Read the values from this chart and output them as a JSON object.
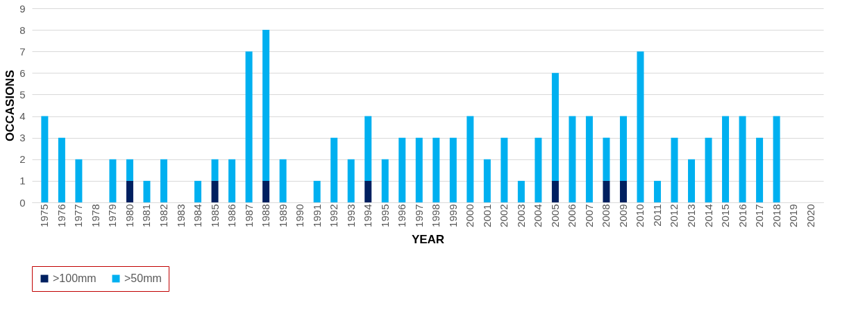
{
  "chart_data": {
    "type": "bar",
    "stacked": true,
    "xlabel": "YEAR",
    "ylabel": "OCCASIONS",
    "categories": [
      "1975",
      "1976",
      "1977",
      "1978",
      "1979",
      "1980",
      "1981",
      "1982",
      "1983",
      "1984",
      "1985",
      "1986",
      "1987",
      "1988",
      "1989",
      "1990",
      "1991",
      "1992",
      "1993",
      "1994",
      "1995",
      "1996",
      "1997",
      "1998",
      "1999",
      "2000",
      "2001",
      "2002",
      "2003",
      "2004",
      "2005",
      "2006",
      "2007",
      "2008",
      "2009",
      "2010",
      "2011",
      "2012",
      "2013",
      "2014",
      "2015",
      "2016",
      "2017",
      "2018",
      "2019",
      "2020"
    ],
    "series": [
      {
        "name": ">100mm",
        "color": "#002060",
        "values": [
          0,
          0,
          0,
          0,
          0,
          1,
          0,
          0,
          0,
          0,
          1,
          0,
          0,
          1,
          0,
          0,
          0,
          0,
          0,
          1,
          0,
          0,
          0,
          0,
          0,
          0,
          0,
          0,
          0,
          0,
          1,
          0,
          0,
          1,
          1,
          0,
          0,
          0,
          0,
          0,
          0,
          0,
          0,
          0,
          0,
          0
        ]
      },
      {
        "name": ">50mm",
        "color": "#00b0f0",
        "values": [
          4,
          3,
          2,
          0,
          2,
          1,
          1,
          2,
          0,
          1,
          1,
          2,
          7,
          7,
          2,
          0,
          1,
          3,
          2,
          3,
          2,
          3,
          3,
          3,
          3,
          4,
          2,
          3,
          1,
          3,
          5,
          4,
          4,
          2,
          3,
          7,
          1,
          3,
          2,
          3,
          4,
          4,
          3,
          4,
          0,
          0
        ]
      }
    ],
    "ylim": [
      0,
      9
    ],
    "yticks": [
      0,
      1,
      2,
      3,
      4,
      5,
      6,
      7,
      8,
      9
    ],
    "grid": "y",
    "legend": "bottom"
  }
}
